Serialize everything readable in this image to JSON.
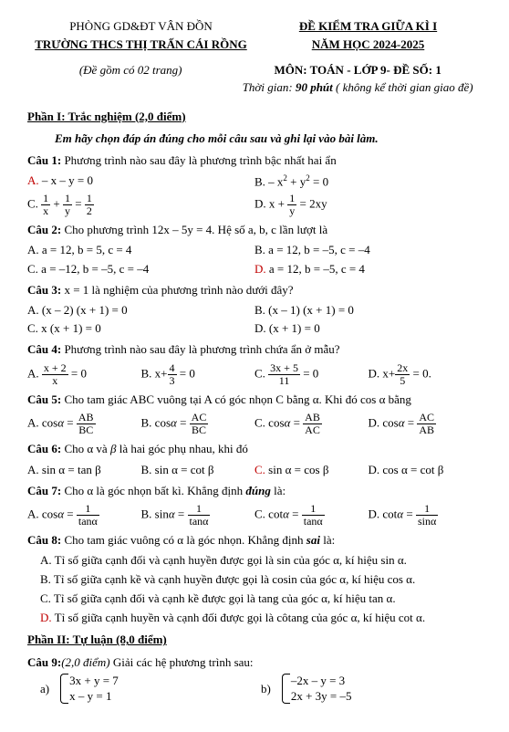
{
  "header": {
    "dept": "PHÒNG GD&ĐT VÂN ĐỒN",
    "school": "TRƯỜNG THCS THỊ TRẤN CÁI RỒNG",
    "exam_title": "ĐỀ KIỂM TRA GIỮA KÌ  I",
    "year": "NĂM HỌC  2024-2025",
    "pages_note": "(Đề gồm có 02 trang)",
    "subject": "MÔN: TOÁN - LỚP 9- ĐỀ SỐ: 1",
    "time_label": "Thời gian:",
    "time_val": "90 phút",
    "time_note": "( không kể thời gian giao đề)"
  },
  "p1": {
    "title": "Phần I: Trắc nghiệm (2,0 điểm)",
    "instruct": "Em hãy chọn đáp án đúng cho mỗi câu sau và ghi lại vào bài làm.",
    "q1": {
      "stem_label": "Câu 1:",
      "stem": " Phương trình nào sau đây là phương trình bậc nhất hai ẩn",
      "a": "– x – y = 0",
      "b_pre": "– x",
      "b_sup": "2",
      "b_mid": " + y",
      "b_sup2": "2",
      "b_post": " = 0",
      "c_frac1n": "1",
      "c_frac1d": "x",
      "c_plus": " + ",
      "c_frac2n": "1",
      "c_frac2d": "y",
      "c_eq": " = ",
      "c_frac3n": "1",
      "c_frac3d": "2",
      "d_pre": "x + ",
      "d_fracn": "1",
      "d_fracd": "y",
      "d_post": " = 2xy"
    },
    "q2": {
      "stem_label": "Câu 2:",
      "stem": " Cho phương trình  12x  –  5y = 4. Hệ số a, b, c lần lượt là",
      "a": "A. a = 12, b = 5, c = 4",
      "b": "B. a = 12, b = –5, c = –4",
      "c": "C. a = –12, b = –5, c = –4",
      "d": "a = 12, b = –5, c = 4"
    },
    "q3": {
      "stem_label": "Câu 3:",
      "stem": "  x = 1 là nghiệm của phương trình nào dưới đây?",
      "a": "A. (x – 2) (x + 1) = 0",
      "b": "B. (x – 1) (x + 1) = 0",
      "c": "C. x (x + 1) = 0",
      "d": "D.  (x + 1) = 0"
    },
    "q4": {
      "stem_label": "Câu 4:",
      "stem": " Phương trình nào sau đây là phương trình chứa ẩn ở mẫu?",
      "a_n": "x + 2",
      "a_d": "x",
      "a_post": " = 0",
      "b_pre": "x+",
      "b_n": "4",
      "b_d": "3",
      "b_post": " = 0",
      "c_n": "3x + 5",
      "c_d": "11",
      "c_post": " = 0",
      "d_pre": "x+",
      "d_n": "2x",
      "d_d": "5",
      "d_post": " = 0."
    },
    "q5": {
      "stem_label": "Câu 5:",
      "stem": " Cho tam giác ABC vuông tại A  có góc nhọn C bằng α. Khi đó cos α bằng",
      "a_n": "AB",
      "a_d": "BC",
      "b_n": "AC",
      "b_d": "BC",
      "c_n": "AB",
      "c_d": "AC",
      "d_n": "AC",
      "d_d": "AB"
    },
    "q6": {
      "stem_label": "Câu 6:",
      "stem_p1": " Cho α và ",
      "stem_beta": "β",
      "stem_p2": " là hai góc phụ nhau, khi đó",
      "a": "A. sin α  =  tan β",
      "b": "B. sin  α  =  cot β",
      "cpre": "sin α  =  cos β",
      "d": "D.  cos  α  =  cot β"
    },
    "q7": {
      "stem_label": "Câu 7:",
      "stem_p1": " Cho α là góc nhọn bất kì. Khẳng định ",
      "stem_em": "đúng",
      "stem_p2": " là:",
      "a_n": "1",
      "a_d": "tanα",
      "b_n": "1",
      "b_d": "tanα",
      "c_n": "1",
      "c_d": "tanα",
      "d_n": "1",
      "d_d": "sinα"
    },
    "q8": {
      "stem_label": "Câu 8:",
      "stem_p1": " Cho tam giác vuông có α là góc nhọn. Khẳng định ",
      "stem_em": "sai",
      "stem_p2": " là:",
      "a": "A. Tỉ số giữa cạnh đối và cạnh huyền được gọi là sin của góc α, kí hiệu sin α.",
      "b": "B. Tỉ số giữa cạnh kề và cạnh huyền được gọi là cosin của góc α, kí hiệu cos α.",
      "c": "C. Tỉ số giữa cạnh đối và cạnh kề được gọi là tang của góc α, kí hiệu tan α.",
      "d": "Tỉ số giữa cạnh huyền và cạnh đối được gọi là côtang của góc α, kí hiệu cot α."
    }
  },
  "p2": {
    "title": "Phần II: Tự luận (8,0 điểm)",
    "q9_label": "Câu 9:",
    "q9_pts": "(2,0 điểm)",
    "q9_stem": "  Giải các hệ phương trình sau:",
    "a_label": "a)",
    "a1": "3x + y = 7",
    "a2": "x – y = 1",
    "b_label": "b)",
    "b1": "–2x – y = 3",
    "b2": "2x + 3y = –5"
  }
}
